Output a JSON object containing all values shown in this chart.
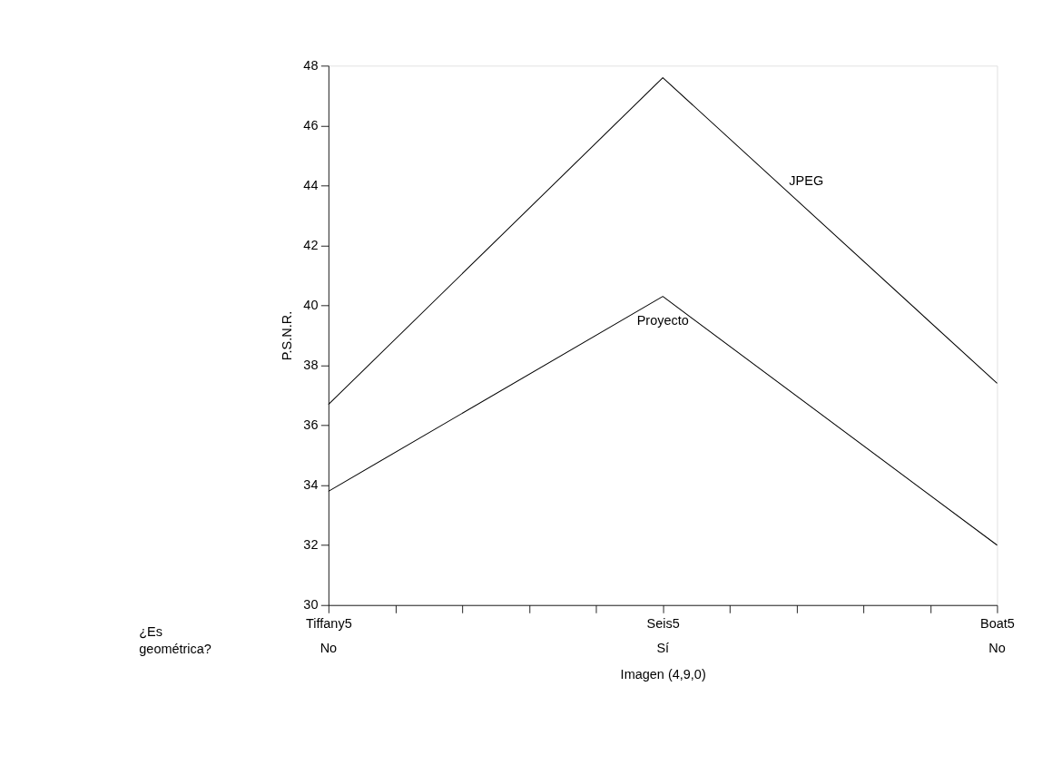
{
  "chart_data": {
    "type": "line",
    "xlabel": "Imagen (4,9,0)",
    "ylabel": "P.S.N.R.",
    "categories": [
      "Tiffany5",
      "Seis5",
      "Boat5"
    ],
    "series": [
      {
        "name": "JPEG",
        "color": "#000000",
        "values": [
          36.7,
          47.6,
          37.4
        ]
      },
      {
        "name": "Proyecto",
        "color": "#000000",
        "values": [
          33.8,
          40.3,
          32.0
        ]
      }
    ],
    "ylim": [
      30,
      48
    ],
    "yticks": [
      30,
      32,
      34,
      36,
      38,
      40,
      42,
      44,
      46,
      48
    ],
    "grid": false,
    "marker": "none",
    "line_style": "solid",
    "annotations": [
      "¿Es geométrica?",
      "No",
      "Sí",
      "No"
    ]
  }
}
